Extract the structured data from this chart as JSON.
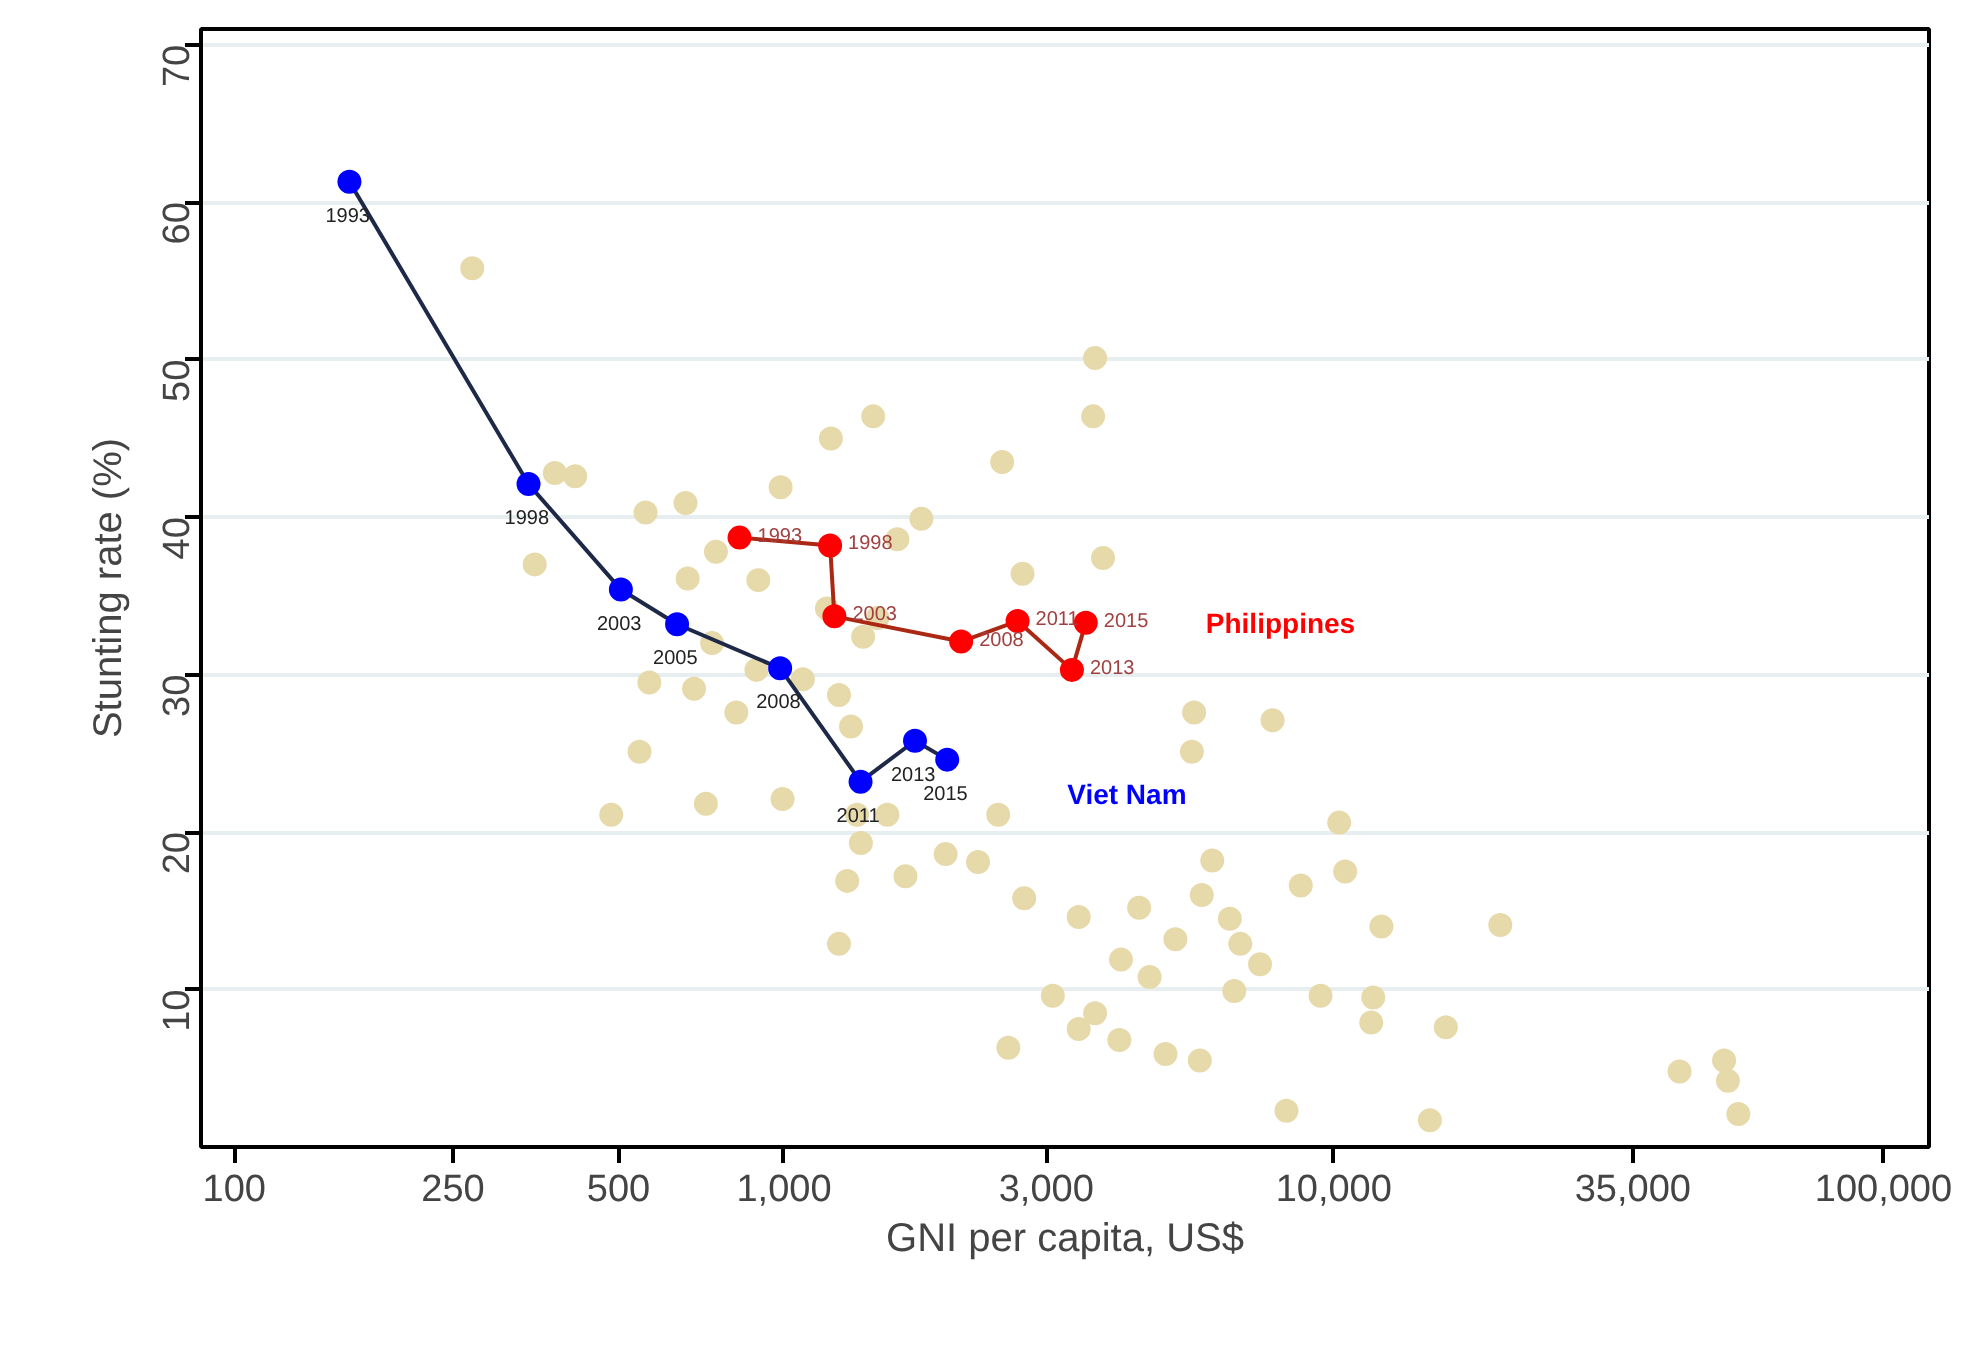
{
  "chart_data": {
    "type": "scatter",
    "xlabel": "GNI per capita, US$",
    "ylabel": "Stunting rate (%)",
    "log": "x",
    "xlim": [
      87,
      121000
    ],
    "ylim": [
      0,
      71
    ],
    "xticks": [
      100,
      250,
      500,
      {
        "value": 1000,
        "label": "1,000"
      },
      {
        "value": 3000,
        "label": "3,000"
      },
      {
        "value": 10000,
        "label": "10,000"
      },
      {
        "value": 35000,
        "label": "35,000"
      },
      {
        "value": 100000,
        "label": "100,000"
      }
    ],
    "yticks": [
      10,
      20,
      30,
      40,
      50,
      60,
      70
    ],
    "grid": "y",
    "marker": "circle",
    "line_style": "solid",
    "series": [
      {
        "color": "#e6d9aa",
        "x": [
          271,
          352,
          383,
          417,
          560,
          662,
          546,
          485,
          668,
          752,
          898,
          986,
          1217,
          1453,
          2494,
          3680,
          3650,
          2716,
          3805,
          1608,
          1778,
          1197,
          1479,
          1393,
          1259,
          1324,
          1358,
          1380,
          1303,
          1259,
          1082,
          1542,
          1663,
          1968,
          2254,
          2453,
          2735,
          3436,
          3083,
          3680,
          3436,
          4102,
          4426,
          4074,
          4943,
          4624,
          5572,
          5521,
          6012,
          6471,
          6761,
          6592,
          7345,
          7740,
          10230,
          10490,
          8710,
          12210,
          11800,
          14960,
          20090,
          42560,
          51290,
          52120,
          54450,
          8203,
          5152,
          5754,
          9462,
          994,
          891,
          686,
          569,
          740,
          819,
          5706,
          11700,
          15990,
          721,
          2559
        ],
        "values": [
          55.8,
          37.0,
          42.8,
          42.6,
          40.3,
          40.9,
          25.1,
          21.1,
          36.1,
          37.8,
          36.0,
          41.9,
          45.0,
          46.4,
          43.5,
          50.1,
          46.4,
          36.4,
          37.4,
          38.6,
          39.9,
          34.2,
          33.6,
          32.4,
          28.7,
          26.7,
          21.1,
          19.3,
          16.9,
          12.9,
          29.7,
          21.1,
          17.2,
          18.6,
          18.1,
          21.1,
          15.8,
          14.6,
          9.6,
          8.5,
          7.5,
          11.9,
          15.2,
          6.8,
          5.9,
          10.8,
          27.6,
          25.1,
          18.2,
          14.5,
          12.9,
          9.9,
          11.6,
          27.1,
          20.6,
          17.5,
          16.6,
          14.0,
          9.5,
          1.7,
          14.1,
          4.8,
          5.5,
          4.2,
          2.1,
          2.3,
          13.2,
          16.0,
          9.6,
          22.1,
          30.3,
          29.1,
          29.5,
          32.0,
          27.6,
          5.5,
          7.9,
          7.6,
          21.8,
          6.3
        ]
      },
      {
        "type": "line",
        "name": "Philippines",
        "color": "#ff0000",
        "x": [
          830,
          1213,
          1235,
          2100,
          2660,
          3340,
          3540
        ],
        "values": [
          38.7,
          38.2,
          33.7,
          32.1,
          33.4,
          30.3,
          33.3
        ]
      },
      {
        "type": "line",
        "name": "Viet Nam",
        "color": "#0000ff",
        "x": [
          162,
          343,
          505,
          639,
          984,
          1378,
          1731,
          1981
        ],
        "values": [
          61.3,
          42.1,
          35.4,
          33.2,
          30.4,
          23.2,
          25.8,
          24.6
        ]
      }
    ],
    "annotations": [
      {
        "text": "1993",
        "x": 830,
        "y": 38.7
      },
      {
        "text": "1998",
        "x": 1213,
        "y": 38.2
      },
      {
        "text": "2003",
        "x": 1235,
        "y": 33.7
      },
      {
        "text": "2008",
        "x": 2100,
        "y": 32.1
      },
      {
        "text": "2011",
        "x": 2660,
        "y": 33.4
      },
      {
        "text": "2013",
        "x": 3340,
        "y": 30.3
      },
      {
        "text": "2015",
        "x": 3540,
        "y": 33.3
      },
      {
        "text": "1993",
        "x": 162,
        "y": 61.3
      },
      {
        "text": "1998",
        "x": 343,
        "y": 42.1
      },
      {
        "text": "2003",
        "x": 505,
        "y": 35.4
      },
      {
        "text": "2005",
        "x": 639,
        "y": 33.2
      },
      {
        "text": "2008",
        "x": 984,
        "y": 30.4
      },
      {
        "text": "2011",
        "x": 1378,
        "y": 23.2
      },
      {
        "text": "2013",
        "x": 1731,
        "y": 25.8
      },
      {
        "text": "2015",
        "x": 1981,
        "y": 24.6
      }
    ]
  }
}
